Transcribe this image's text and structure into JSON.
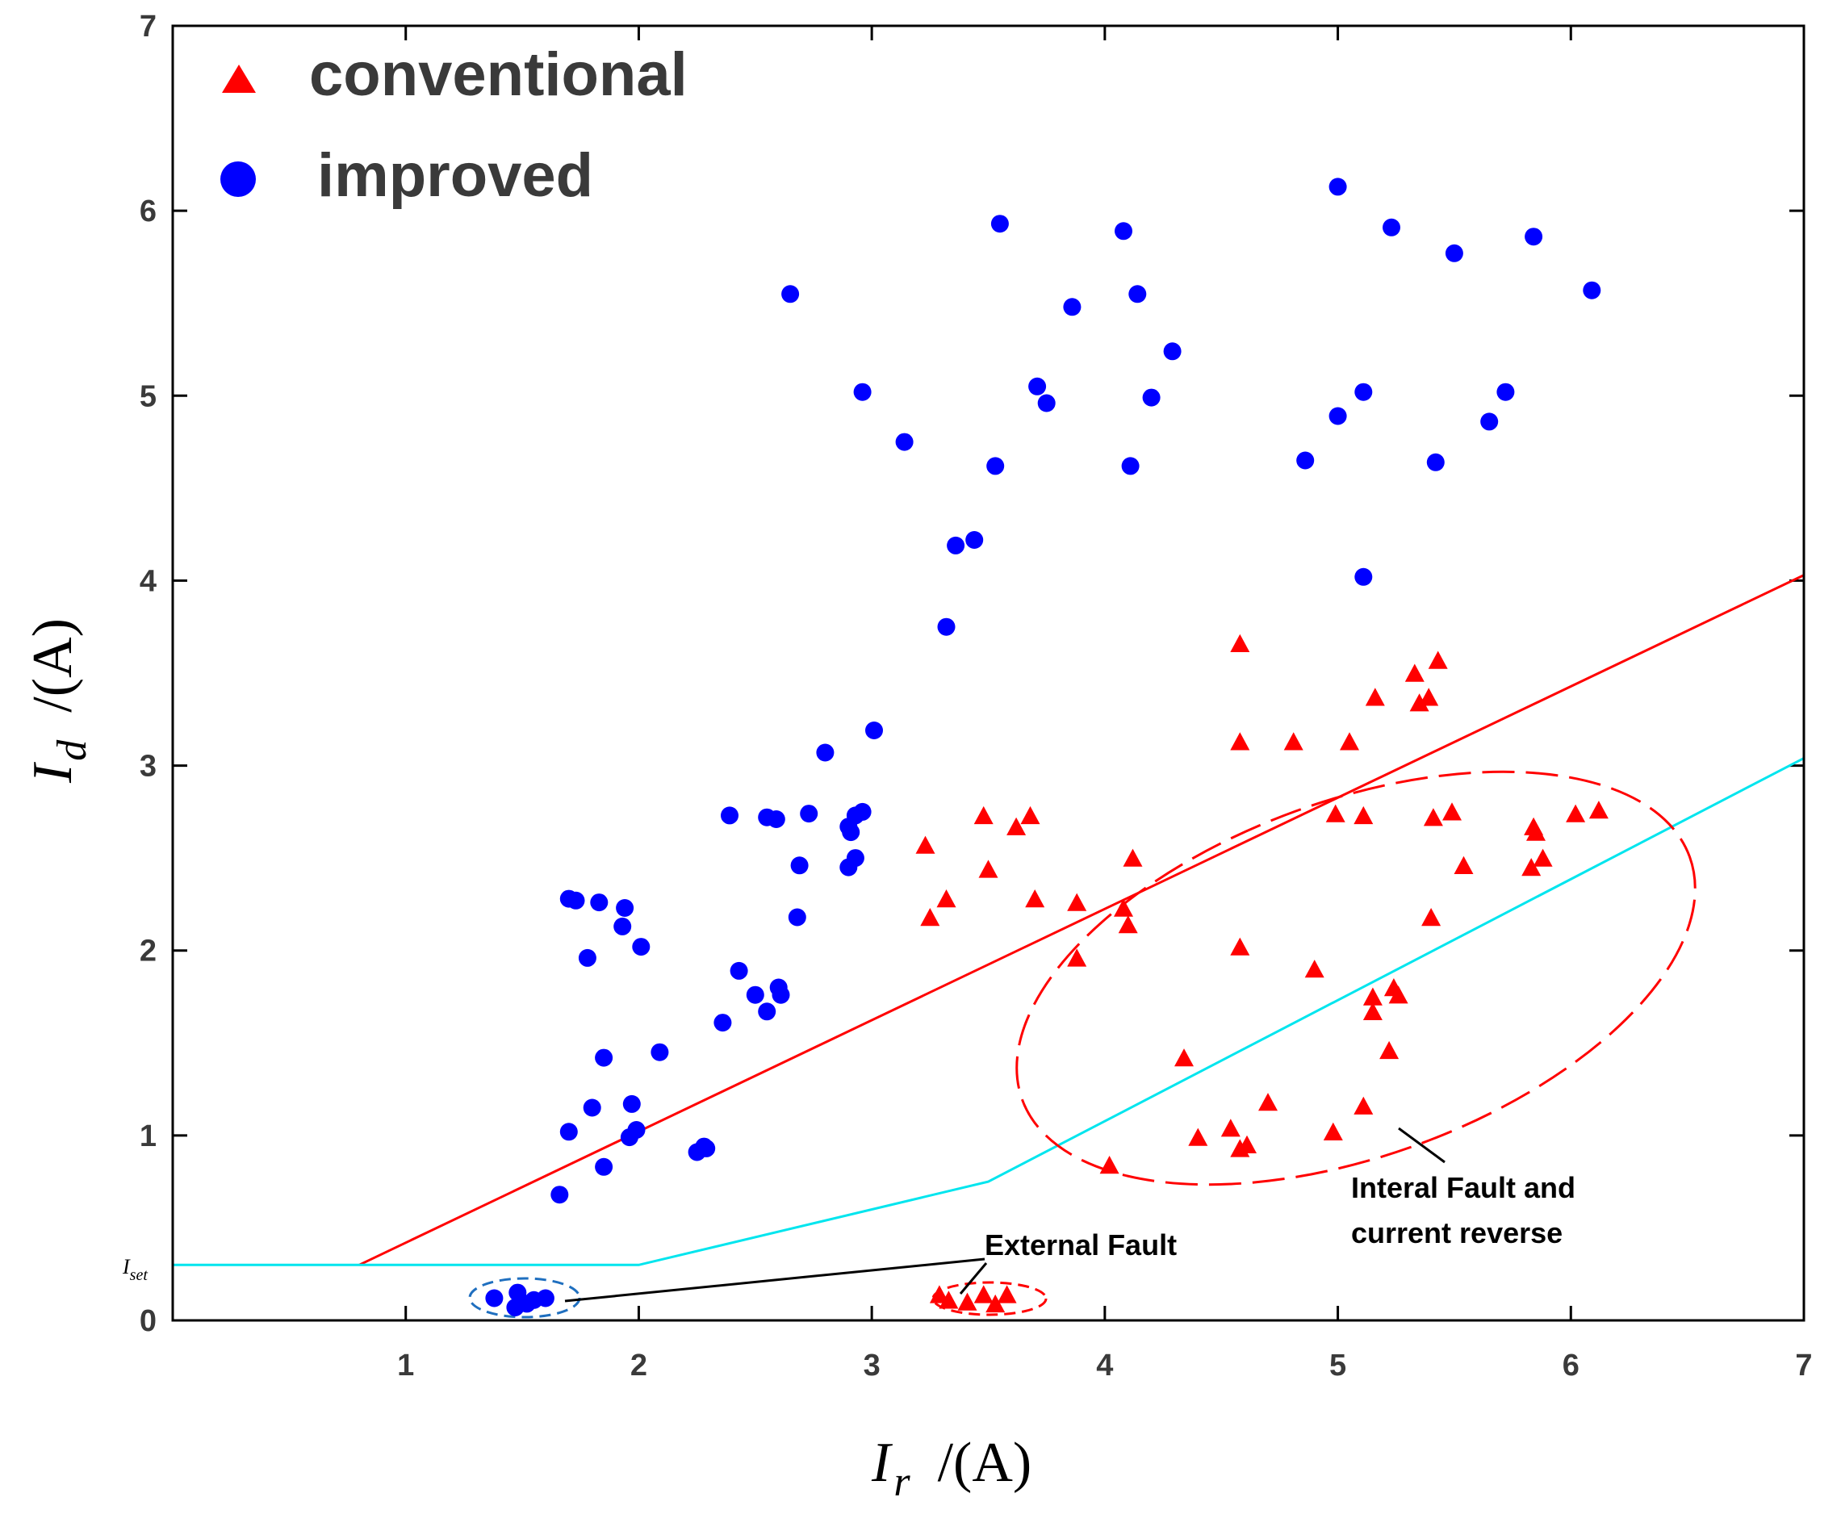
{
  "chart_data": {
    "type": "scatter",
    "xlabel_symbol": "I",
    "xlabel_subscript": "r",
    "xlabel_unit": "/(A)",
    "ylabel_symbol": "I",
    "ylabel_subscript": "d",
    "ylabel_unit": "/(A)",
    "xlim": [
      0,
      7
    ],
    "ylim": [
      0,
      7
    ],
    "xticks": [
      1,
      2,
      3,
      4,
      5,
      6,
      7
    ],
    "yticks": [
      0,
      1,
      2,
      3,
      4,
      5,
      6,
      7
    ],
    "iset_label": "I",
    "iset_subscript": "set",
    "legend": {
      "placement": "top-left",
      "entries": [
        {
          "label": "conventional",
          "marker": "triangle",
          "color": "#ff0000"
        },
        {
          "label": "improved",
          "marker": "circle",
          "color": "#0000ff"
        }
      ]
    },
    "series": [
      {
        "name": "conventional",
        "marker": "triangle",
        "color": "#ff0000",
        "points": [
          [
            3.23,
            2.56
          ],
          [
            3.25,
            2.17
          ],
          [
            3.32,
            2.27
          ],
          [
            3.48,
            2.72
          ],
          [
            3.5,
            2.43
          ],
          [
            3.62,
            2.66
          ],
          [
            3.68,
            2.72
          ],
          [
            3.7,
            2.27
          ],
          [
            3.88,
            2.25
          ],
          [
            3.88,
            1.95
          ],
          [
            4.08,
            2.22
          ],
          [
            4.1,
            2.13
          ],
          [
            4.12,
            2.49
          ],
          [
            4.02,
            0.83
          ],
          [
            4.34,
            1.41
          ],
          [
            4.4,
            0.98
          ],
          [
            4.54,
            1.03
          ],
          [
            4.58,
            0.92
          ],
          [
            4.61,
            0.94
          ],
          [
            4.7,
            1.17
          ],
          [
            4.58,
            2.01
          ],
          [
            4.58,
            3.65
          ],
          [
            4.58,
            3.12
          ],
          [
            4.81,
            3.12
          ],
          [
            4.9,
            1.89
          ],
          [
            4.98,
            1.01
          ],
          [
            4.99,
            2.73
          ],
          [
            5.05,
            3.12
          ],
          [
            5.11,
            1.15
          ],
          [
            5.11,
            2.72
          ],
          [
            5.16,
            3.36
          ],
          [
            5.15,
            1.74
          ],
          [
            5.15,
            1.66
          ],
          [
            5.22,
            1.45
          ],
          [
            5.24,
            1.79
          ],
          [
            5.26,
            1.75
          ],
          [
            5.33,
            3.49
          ],
          [
            5.35,
            3.33
          ],
          [
            5.39,
            3.36
          ],
          [
            5.4,
            2.17
          ],
          [
            5.41,
            2.71
          ],
          [
            5.43,
            3.56
          ],
          [
            5.49,
            2.74
          ],
          [
            5.54,
            2.45
          ],
          [
            5.83,
            2.44
          ],
          [
            5.84,
            2.66
          ],
          [
            5.85,
            2.63
          ],
          [
            5.88,
            2.49
          ],
          [
            6.02,
            2.73
          ],
          [
            6.12,
            2.75
          ],
          [
            3.29,
            0.13
          ],
          [
            3.33,
            0.1
          ],
          [
            3.41,
            0.09
          ],
          [
            3.48,
            0.13
          ],
          [
            3.53,
            0.08
          ],
          [
            3.58,
            0.13
          ]
        ]
      },
      {
        "name": "improved",
        "marker": "circle",
        "color": "#0000ff",
        "points": [
          [
            1.66,
            0.68
          ],
          [
            1.7,
            1.02
          ],
          [
            1.7,
            2.28
          ],
          [
            1.73,
            2.27
          ],
          [
            1.78,
            1.96
          ],
          [
            1.8,
            1.15
          ],
          [
            1.83,
            2.26
          ],
          [
            1.85,
            0.83
          ],
          [
            1.85,
            1.42
          ],
          [
            1.93,
            2.13
          ],
          [
            1.94,
            2.23
          ],
          [
            1.96,
            0.99
          ],
          [
            1.97,
            1.17
          ],
          [
            1.99,
            1.03
          ],
          [
            2.01,
            2.02
          ],
          [
            2.09,
            1.45
          ],
          [
            2.25,
            0.91
          ],
          [
            2.28,
            0.94
          ],
          [
            2.29,
            0.93
          ],
          [
            2.36,
            1.61
          ],
          [
            2.39,
            2.73
          ],
          [
            2.43,
            1.89
          ],
          [
            2.5,
            1.76
          ],
          [
            2.55,
            2.72
          ],
          [
            2.55,
            1.67
          ],
          [
            2.59,
            2.71
          ],
          [
            2.6,
            1.8
          ],
          [
            2.61,
            1.76
          ],
          [
            2.65,
            5.55
          ],
          [
            2.68,
            2.18
          ],
          [
            2.69,
            2.46
          ],
          [
            2.73,
            2.74
          ],
          [
            2.8,
            3.07
          ],
          [
            2.9,
            2.45
          ],
          [
            2.9,
            2.67
          ],
          [
            2.91,
            2.64
          ],
          [
            2.93,
            2.5
          ],
          [
            2.93,
            2.73
          ],
          [
            2.96,
            2.75
          ],
          [
            2.96,
            5.02
          ],
          [
            3.01,
            3.19
          ],
          [
            3.14,
            4.75
          ],
          [
            3.32,
            3.75
          ],
          [
            3.36,
            4.19
          ],
          [
            3.44,
            4.22
          ],
          [
            3.53,
            4.62
          ],
          [
            3.55,
            5.93
          ],
          [
            3.71,
            5.05
          ],
          [
            3.75,
            4.96
          ],
          [
            3.86,
            5.48
          ],
          [
            4.08,
            5.89
          ],
          [
            4.11,
            4.62
          ],
          [
            4.14,
            5.55
          ],
          [
            4.2,
            4.99
          ],
          [
            4.29,
            5.24
          ],
          [
            4.86,
            4.65
          ],
          [
            5.0,
            6.13
          ],
          [
            5.0,
            4.89
          ],
          [
            5.11,
            5.02
          ],
          [
            5.11,
            4.02
          ],
          [
            5.23,
            5.91
          ],
          [
            5.42,
            4.64
          ],
          [
            5.5,
            5.77
          ],
          [
            5.65,
            4.86
          ],
          [
            5.72,
            5.02
          ],
          [
            5.84,
            5.86
          ],
          [
            6.09,
            5.57
          ],
          [
            1.38,
            0.12
          ],
          [
            1.47,
            0.07
          ],
          [
            1.48,
            0.15
          ],
          [
            1.52,
            0.09
          ],
          [
            1.55,
            0.11
          ],
          [
            1.6,
            0.12
          ]
        ]
      }
    ],
    "boundaries": [
      {
        "name": "conventional characteristic",
        "color": "#ff0000",
        "points": [
          [
            0.8,
            0.3
          ],
          [
            7.0,
            4.03
          ]
        ]
      },
      {
        "name": "improved characteristic",
        "color": "#00e5ee",
        "points": [
          [
            0,
            0.3
          ],
          [
            2.0,
            0.3
          ],
          [
            3.5,
            0.75
          ],
          [
            7.0,
            3.04
          ]
        ]
      }
    ],
    "annotations": [
      {
        "text": "External Fault"
      },
      {
        "lines": [
          "Interal Fault and",
          "current reverse"
        ]
      }
    ]
  }
}
